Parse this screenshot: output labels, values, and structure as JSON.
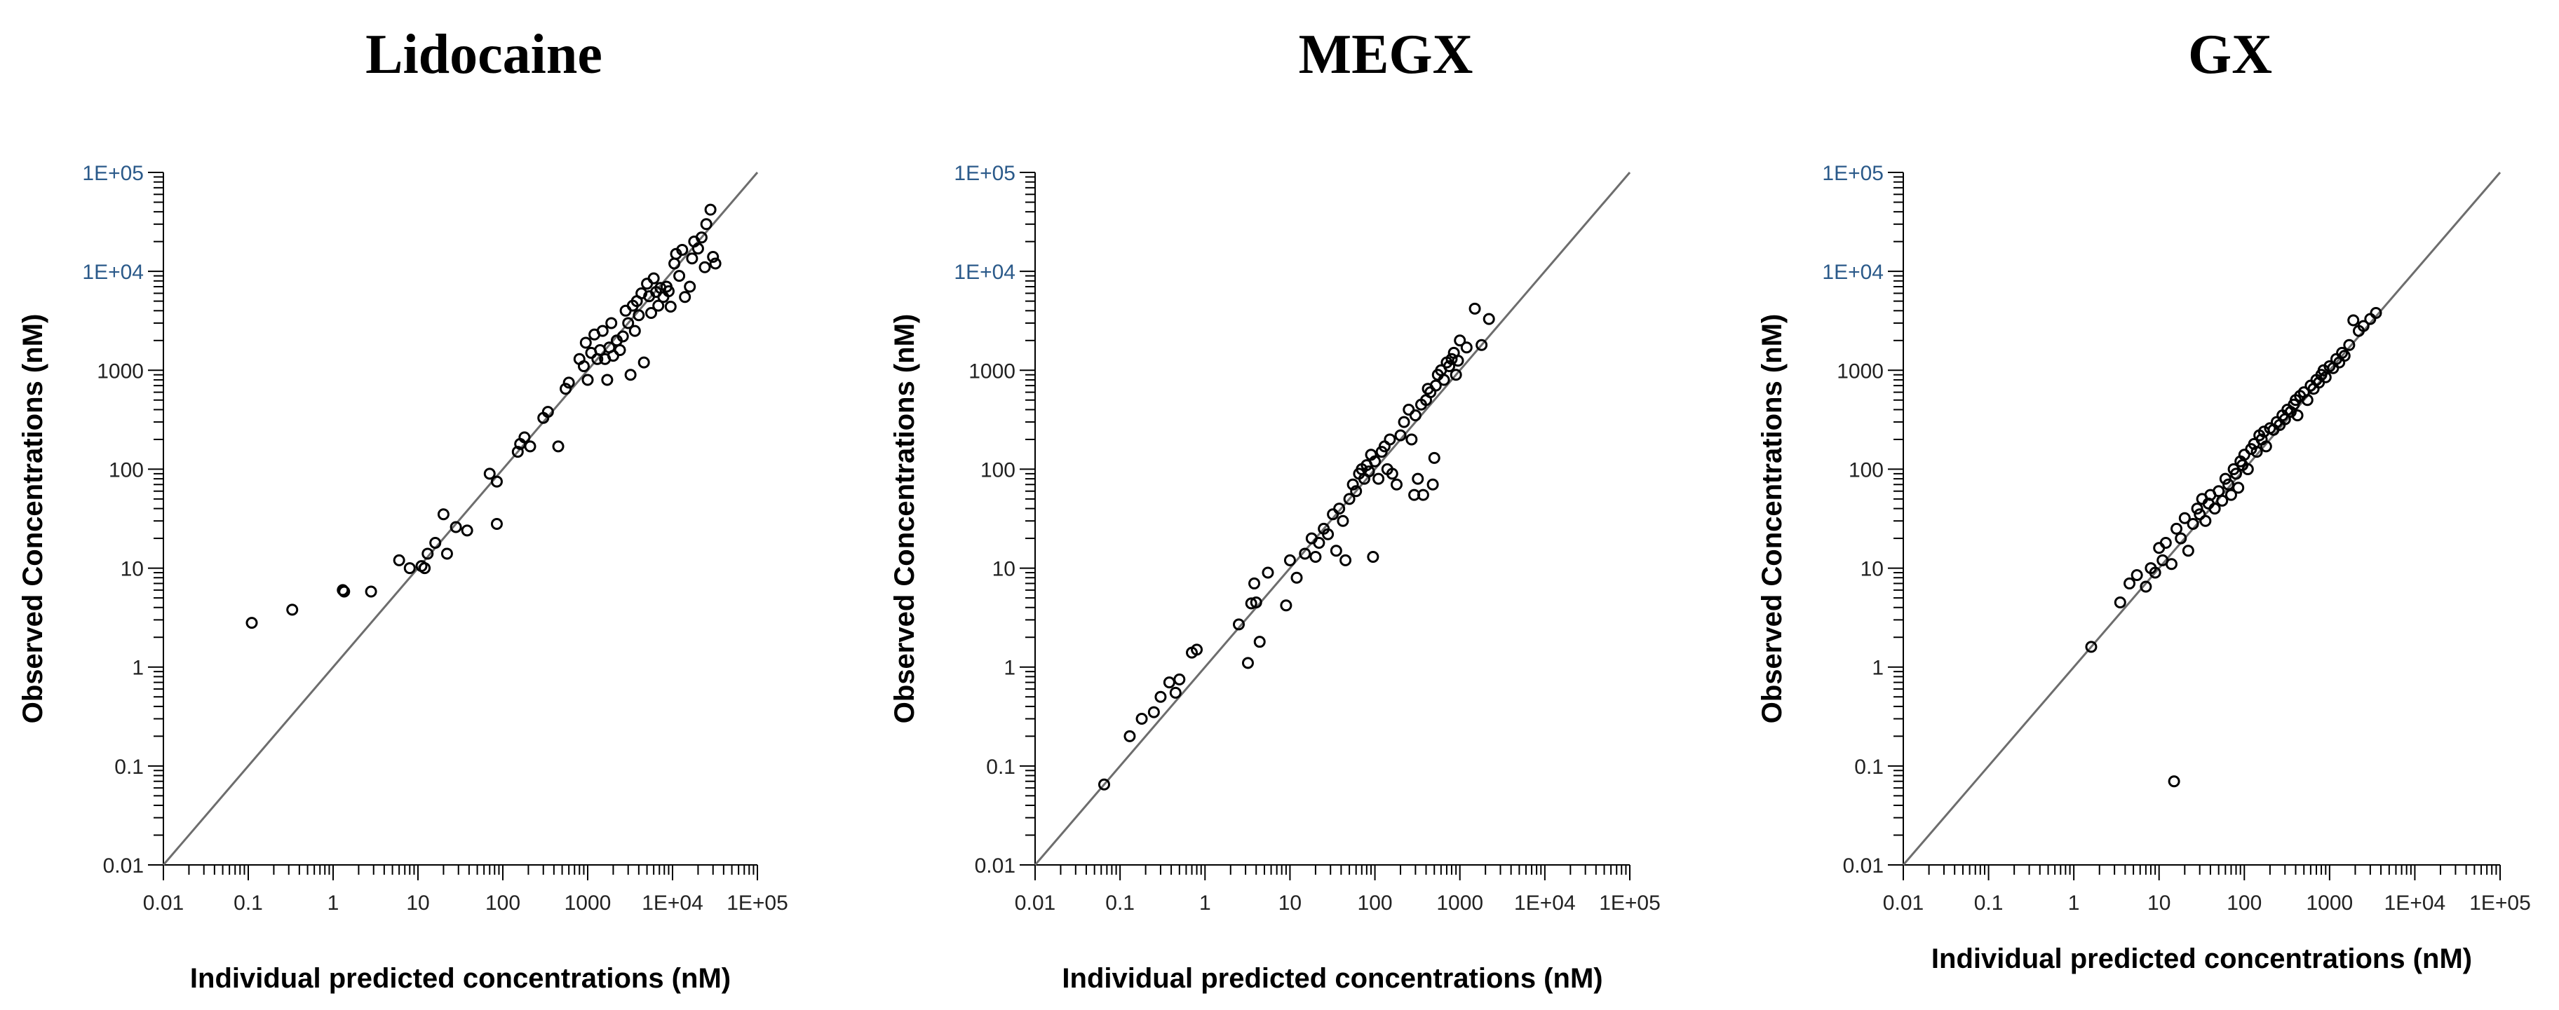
{
  "colors": {
    "axis": "#000000",
    "identity_line": "#6d6d6d",
    "marker": "#000000",
    "tick_blue": "#2b5a8a"
  },
  "chart_data": [
    {
      "type": "scatter",
      "title": "Lidocaine",
      "xlabel": "Individual predicted concentrations (nM)",
      "ylabel": "Observed Concentrations (nM)",
      "xscale": "log",
      "yscale": "log",
      "xlim": [
        0.01,
        100000
      ],
      "ylim": [
        0.01,
        100000
      ],
      "xtick_labels": [
        "0.01",
        "0.1",
        "1",
        "10",
        "100",
        "1000",
        "1E+04",
        "1E+05"
      ],
      "ytick_labels": [
        "0.01",
        "0.1",
        "1",
        "10",
        "100",
        "1000",
        "1E+04",
        "1E+05"
      ],
      "identity_line": true,
      "points": [
        [
          0.11,
          2.8
        ],
        [
          0.33,
          3.8
        ],
        [
          1.3,
          6
        ],
        [
          1.35,
          5.8
        ],
        [
          2.8,
          5.8
        ],
        [
          6,
          12
        ],
        [
          8,
          10
        ],
        [
          11,
          10.5
        ],
        [
          12,
          10
        ],
        [
          13,
          14
        ],
        [
          16,
          18
        ],
        [
          20,
          35
        ],
        [
          22,
          14
        ],
        [
          28,
          26
        ],
        [
          38,
          24
        ],
        [
          70,
          90
        ],
        [
          85,
          75
        ],
        [
          85,
          28
        ],
        [
          150,
          150
        ],
        [
          160,
          180
        ],
        [
          180,
          210
        ],
        [
          210,
          170
        ],
        [
          300,
          330
        ],
        [
          340,
          380
        ],
        [
          450,
          170
        ],
        [
          550,
          650
        ],
        [
          600,
          750
        ],
        [
          800,
          1300
        ],
        [
          900,
          1100
        ],
        [
          950,
          1900
        ],
        [
          1000,
          800
        ],
        [
          1100,
          1500
        ],
        [
          1200,
          2300
        ],
        [
          1300,
          1300
        ],
        [
          1400,
          1600
        ],
        [
          1500,
          2500
        ],
        [
          1600,
          1300
        ],
        [
          1700,
          800
        ],
        [
          1800,
          1700
        ],
        [
          1900,
          3000
        ],
        [
          2000,
          1400
        ],
        [
          2200,
          2000
        ],
        [
          2400,
          1600
        ],
        [
          2600,
          2200
        ],
        [
          2800,
          4000
        ],
        [
          3000,
          3000
        ],
        [
          3200,
          900
        ],
        [
          3400,
          4500
        ],
        [
          3600,
          2500
        ],
        [
          3800,
          5000
        ],
        [
          4000,
          3600
        ],
        [
          4300,
          6000
        ],
        [
          4600,
          1200
        ],
        [
          5000,
          7500
        ],
        [
          5300,
          5600
        ],
        [
          5600,
          3800
        ],
        [
          6000,
          8500
        ],
        [
          6400,
          6200
        ],
        [
          6800,
          4500
        ],
        [
          7200,
          6800
        ],
        [
          7800,
          5500
        ],
        [
          8500,
          7000
        ],
        [
          9000,
          6300
        ],
        [
          9500,
          4400
        ],
        [
          10500,
          12000
        ],
        [
          11000,
          15000
        ],
        [
          12000,
          9000
        ],
        [
          13000,
          16500
        ],
        [
          14000,
          5500
        ],
        [
          16000,
          7000
        ],
        [
          17000,
          13500
        ],
        [
          18000,
          20000
        ],
        [
          20000,
          17000
        ],
        [
          22000,
          22000
        ],
        [
          24000,
          11000
        ],
        [
          25000,
          30000
        ],
        [
          28000,
          42000
        ],
        [
          30000,
          14000
        ],
        [
          32000,
          12000
        ]
      ]
    },
    {
      "type": "scatter",
      "title": "MEGX",
      "xlabel": "Individual predicted concentrations (nM)",
      "ylabel": "Observed Concentrations (nM)",
      "xscale": "log",
      "yscale": "log",
      "xlim": [
        0.01,
        100000
      ],
      "ylim": [
        0.01,
        100000
      ],
      "xtick_labels": [
        "0.01",
        "0.1",
        "1",
        "10",
        "100",
        "1000",
        "1E+04",
        "1E+05"
      ],
      "ytick_labels": [
        "0.01",
        "0.1",
        "1",
        "10",
        "100",
        "1000",
        "1E+04",
        "1E+05"
      ],
      "identity_line": true,
      "points": [
        [
          0.065,
          0.065
        ],
        [
          0.13,
          0.2
        ],
        [
          0.18,
          0.3
        ],
        [
          0.25,
          0.35
        ],
        [
          0.3,
          0.5
        ],
        [
          0.38,
          0.7
        ],
        [
          0.45,
          0.55
        ],
        [
          0.5,
          0.75
        ],
        [
          0.7,
          1.4
        ],
        [
          0.8,
          1.5
        ],
        [
          2.5,
          2.7
        ],
        [
          3.2,
          1.1
        ],
        [
          3.5,
          4.4
        ],
        [
          3.8,
          7
        ],
        [
          4,
          4.5
        ],
        [
          4.4,
          1.8
        ],
        [
          5.5,
          9
        ],
        [
          9,
          4.2
        ],
        [
          10,
          12
        ],
        [
          12,
          8
        ],
        [
          15,
          14
        ],
        [
          18,
          20
        ],
        [
          20,
          13
        ],
        [
          22,
          18
        ],
        [
          25,
          25
        ],
        [
          28,
          22
        ],
        [
          32,
          35
        ],
        [
          35,
          15
        ],
        [
          38,
          40
        ],
        [
          42,
          30
        ],
        [
          45,
          12
        ],
        [
          50,
          50
        ],
        [
          55,
          70
        ],
        [
          60,
          60
        ],
        [
          65,
          90
        ],
        [
          70,
          100
        ],
        [
          75,
          80
        ],
        [
          80,
          110
        ],
        [
          85,
          95
        ],
        [
          90,
          140
        ],
        [
          95,
          13
        ],
        [
          100,
          120
        ],
        [
          110,
          80
        ],
        [
          120,
          150
        ],
        [
          130,
          170
        ],
        [
          140,
          100
        ],
        [
          150,
          200
        ],
        [
          160,
          90
        ],
        [
          180,
          70
        ],
        [
          200,
          220
        ],
        [
          220,
          300
        ],
        [
          250,
          400
        ],
        [
          270,
          200
        ],
        [
          290,
          55
        ],
        [
          300,
          350
        ],
        [
          320,
          80
        ],
        [
          350,
          450
        ],
        [
          370,
          55
        ],
        [
          400,
          500
        ],
        [
          420,
          650
        ],
        [
          450,
          600
        ],
        [
          480,
          70
        ],
        [
          500,
          130
        ],
        [
          520,
          700
        ],
        [
          550,
          900
        ],
        [
          600,
          1000
        ],
        [
          650,
          800
        ],
        [
          700,
          1200
        ],
        [
          750,
          1100
        ],
        [
          800,
          1300
        ],
        [
          850,
          1500
        ],
        [
          900,
          900
        ],
        [
          950,
          1250
        ],
        [
          1000,
          2000
        ],
        [
          1200,
          1700
        ],
        [
          1500,
          4200
        ],
        [
          1800,
          1800
        ],
        [
          2200,
          3300
        ]
      ]
    },
    {
      "type": "scatter",
      "title": "GX",
      "xlabel": "Individual predicted concentrations (nM)",
      "ylabel": "Observed Concentrations (nM)",
      "xscale": "log",
      "yscale": "log",
      "xlim": [
        0.01,
        100000
      ],
      "ylim": [
        0.01,
        100000
      ],
      "xtick_labels": [
        "0.01",
        "0.1",
        "1",
        "10",
        "100",
        "1000",
        "1E+04",
        "1E+05"
      ],
      "ytick_labels": [
        "0.01",
        "0.1",
        "1",
        "10",
        "100",
        "1000",
        "1E+04",
        "1E+05"
      ],
      "identity_line": true,
      "points": [
        [
          1.6,
          1.6
        ],
        [
          3.5,
          4.5
        ],
        [
          4.5,
          7
        ],
        [
          5.5,
          8.5
        ],
        [
          7,
          6.5
        ],
        [
          8,
          10
        ],
        [
          9,
          9
        ],
        [
          10,
          16
        ],
        [
          11,
          12
        ],
        [
          12,
          18
        ],
        [
          14,
          11
        ],
        [
          15,
          0.07
        ],
        [
          16,
          25
        ],
        [
          18,
          20
        ],
        [
          20,
          32
        ],
        [
          22,
          15
        ],
        [
          25,
          28
        ],
        [
          28,
          40
        ],
        [
          30,
          35
        ],
        [
          32,
          50
        ],
        [
          35,
          30
        ],
        [
          38,
          45
        ],
        [
          40,
          55
        ],
        [
          45,
          40
        ],
        [
          50,
          60
        ],
        [
          55,
          48
        ],
        [
          60,
          80
        ],
        [
          65,
          70
        ],
        [
          70,
          55
        ],
        [
          75,
          100
        ],
        [
          80,
          90
        ],
        [
          85,
          65
        ],
        [
          90,
          120
        ],
        [
          95,
          110
        ],
        [
          100,
          140
        ],
        [
          110,
          100
        ],
        [
          120,
          160
        ],
        [
          130,
          180
        ],
        [
          140,
          150
        ],
        [
          150,
          220
        ],
        [
          160,
          200
        ],
        [
          170,
          240
        ],
        [
          180,
          170
        ],
        [
          200,
          260
        ],
        [
          220,
          250
        ],
        [
          240,
          300
        ],
        [
          260,
          280
        ],
        [
          280,
          350
        ],
        [
          300,
          320
        ],
        [
          320,
          400
        ],
        [
          350,
          380
        ],
        [
          380,
          450
        ],
        [
          400,
          500
        ],
        [
          420,
          350
        ],
        [
          450,
          550
        ],
        [
          500,
          600
        ],
        [
          550,
          500
        ],
        [
          600,
          700
        ],
        [
          650,
          650
        ],
        [
          700,
          800
        ],
        [
          750,
          750
        ],
        [
          800,
          900
        ],
        [
          850,
          1000
        ],
        [
          900,
          850
        ],
        [
          1000,
          1100
        ],
        [
          1100,
          1050
        ],
        [
          1200,
          1300
        ],
        [
          1300,
          1200
        ],
        [
          1400,
          1500
        ],
        [
          1500,
          1400
        ],
        [
          1700,
          1800
        ],
        [
          1900,
          3200
        ],
        [
          2200,
          2500
        ],
        [
          2500,
          2800
        ],
        [
          3000,
          3300
        ],
        [
          3500,
          3800
        ]
      ]
    }
  ]
}
